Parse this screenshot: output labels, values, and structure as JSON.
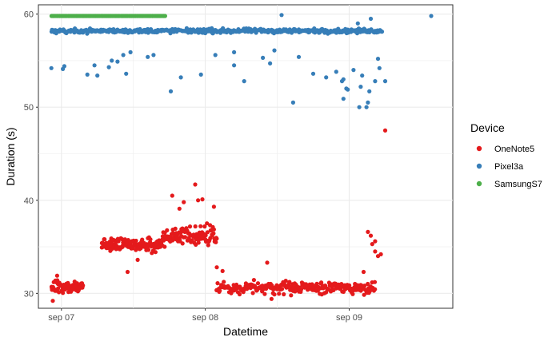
{
  "chart_data": {
    "type": "scatter",
    "xlabel": "Datetime",
    "ylabel": "Duration (s)",
    "x_ticks": [
      "sep 07",
      "sep 08",
      "sep 09"
    ],
    "x_tick_values": [
      1,
      2,
      3
    ],
    "xlim": [
      0.84,
      3.72
    ],
    "ylim": [
      28.4,
      61.0
    ],
    "y_ticks": [
      30,
      40,
      50,
      60
    ],
    "grid": true,
    "legend_title": "Device",
    "legend_position": "right",
    "series": [
      {
        "name": "OneNote5",
        "color": "#E41A1C",
        "clusters": [
          {
            "x_range": [
              0.93,
              1.15
            ],
            "y_center": 30.7,
            "y_spread": 0.8,
            "count": 70
          },
          {
            "x_range": [
              1.28,
              1.7
            ],
            "y_center": 35.2,
            "y_spread": 1.0,
            "count": 150
          },
          {
            "x_range": [
              1.7,
              2.08
            ],
            "y_center": 36.2,
            "y_spread": 1.6,
            "count": 110
          },
          {
            "x_range": [
              2.08,
              3.18
            ],
            "y_center": 30.6,
            "y_spread": 0.9,
            "count": 260
          }
        ],
        "points": [
          [
            0.94,
            29.2
          ],
          [
            0.97,
            31.9
          ],
          [
            1.46,
            32.3
          ],
          [
            1.53,
            33.6
          ],
          [
            1.77,
            40.5
          ],
          [
            1.82,
            39.1
          ],
          [
            1.85,
            39.8
          ],
          [
            1.93,
            41.7
          ],
          [
            1.95,
            40.0
          ],
          [
            1.98,
            40.1
          ],
          [
            2.06,
            39.3
          ],
          [
            2.08,
            32.8
          ],
          [
            2.12,
            32.4
          ],
          [
            2.43,
            33.3
          ],
          [
            2.46,
            29.4
          ],
          [
            3.1,
            32.3
          ],
          [
            3.13,
            36.6
          ],
          [
            3.15,
            36.2
          ],
          [
            3.16,
            35.3
          ],
          [
            3.18,
            34.5
          ],
          [
            3.2,
            34.0
          ],
          [
            3.22,
            34.2
          ],
          [
            3.18,
            35.6
          ],
          [
            3.25,
            47.5
          ]
        ]
      },
      {
        "name": "Pixel3a",
        "color": "#377EB8",
        "clusters": [
          {
            "x_range": [
              0.93,
              3.23
            ],
            "y_center": 58.2,
            "y_spread": 0.35,
            "count": 420
          }
        ],
        "points": [
          [
            0.93,
            54.2
          ],
          [
            1.01,
            54.1
          ],
          [
            1.02,
            54.4
          ],
          [
            1.18,
            53.5
          ],
          [
            1.23,
            54.5
          ],
          [
            1.25,
            53.4
          ],
          [
            1.33,
            54.3
          ],
          [
            1.35,
            55.0
          ],
          [
            1.39,
            54.9
          ],
          [
            1.43,
            55.6
          ],
          [
            1.45,
            53.6
          ],
          [
            1.48,
            55.9
          ],
          [
            1.6,
            55.4
          ],
          [
            1.64,
            55.6
          ],
          [
            1.76,
            51.7
          ],
          [
            1.83,
            53.2
          ],
          [
            1.97,
            53.5
          ],
          [
            2.07,
            55.6
          ],
          [
            2.2,
            55.9
          ],
          [
            2.2,
            54.5
          ],
          [
            2.27,
            52.8
          ],
          [
            2.4,
            55.3
          ],
          [
            2.45,
            54.7
          ],
          [
            2.48,
            56.1
          ],
          [
            2.53,
            59.9
          ],
          [
            2.61,
            50.5
          ],
          [
            2.65,
            55.4
          ],
          [
            2.75,
            53.6
          ],
          [
            2.84,
            53.2
          ],
          [
            2.91,
            53.8
          ],
          [
            2.95,
            52.8
          ],
          [
            2.96,
            53.0
          ],
          [
            2.98,
            52.0
          ],
          [
            2.99,
            51.9
          ],
          [
            3.08,
            52.2
          ],
          [
            3.09,
            53.4
          ],
          [
            3.12,
            50.0
          ],
          [
            3.13,
            50.5
          ],
          [
            3.14,
            51.7
          ],
          [
            3.18,
            52.8
          ],
          [
            3.15,
            59.5
          ],
          [
            3.2,
            55.2
          ],
          [
            3.21,
            54.2
          ],
          [
            3.25,
            52.8
          ],
          [
            3.57,
            59.8
          ],
          [
            2.96,
            50.9
          ],
          [
            3.07,
            50.0
          ],
          [
            3.03,
            54.0
          ],
          [
            3.06,
            59.0
          ]
        ]
      },
      {
        "name": "SamsungS7",
        "color": "#4DAF4A",
        "clusters": [
          {
            "x_range": [
              0.93,
              1.72
            ],
            "y_center": 59.8,
            "y_spread": 0.0,
            "count": 130
          }
        ],
        "points": []
      }
    ]
  }
}
